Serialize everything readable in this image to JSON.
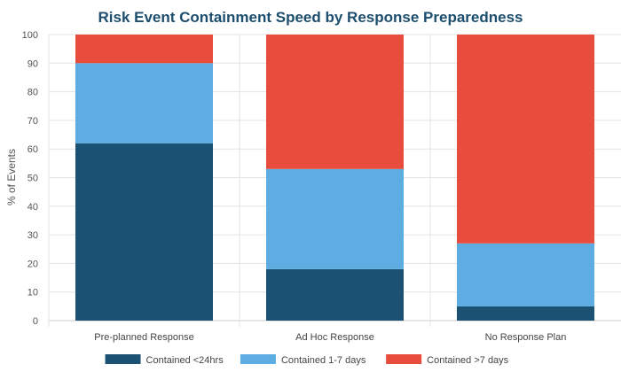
{
  "chart_data": {
    "type": "bar",
    "stacked": true,
    "title": "Risk Event Containment Speed by Response Preparedness",
    "xlabel": "",
    "ylabel": "% of Events",
    "ylim": [
      0,
      100
    ],
    "yticks": [
      0,
      10,
      20,
      30,
      40,
      50,
      60,
      70,
      80,
      90,
      100
    ],
    "categories": [
      "Pre-planned Response",
      "Ad Hoc Response",
      "No Response Plan"
    ],
    "series": [
      {
        "name": "Contained <24hrs",
        "color": "#1b5274",
        "values": [
          62,
          18,
          5
        ]
      },
      {
        "name": "Contained 1-7 days",
        "color": "#5dade2",
        "values": [
          28,
          35,
          22
        ]
      },
      {
        "name": "Contained >7 days",
        "color": "#e74c3c",
        "values": [
          10,
          47,
          73
        ]
      }
    ],
    "grid": true,
    "legend": "bottom"
  }
}
